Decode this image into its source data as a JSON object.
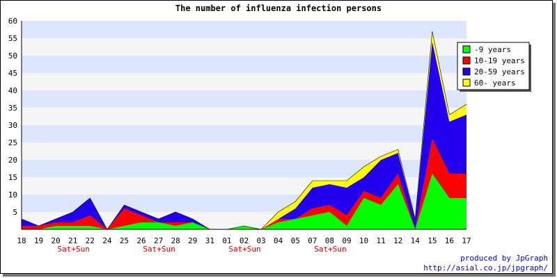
{
  "chart_data": {
    "type": "area",
    "stacked": true,
    "title": "The number of influenza infection persons",
    "categories": [
      "18",
      "19",
      "20",
      "21",
      "22",
      "24",
      "25",
      "26",
      "27",
      "28",
      "29",
      "31",
      "01",
      "02",
      "03",
      "04",
      "05",
      "07",
      "08",
      "09",
      "10",
      "11",
      "12",
      "14",
      "15",
      "16",
      "17"
    ],
    "weekend_labels": [
      {
        "category_index": 3,
        "text": "Sat+Sun"
      },
      {
        "category_index": 8,
        "text": "Sat+Sun"
      },
      {
        "category_index": 13,
        "text": "Sat+Sun"
      },
      {
        "category_index": 18,
        "text": "Sat+Sun"
      }
    ],
    "ylim": [
      0,
      60
    ],
    "yticks": [
      5,
      10,
      15,
      20,
      25,
      30,
      35,
      40,
      45,
      50,
      55,
      60
    ],
    "grid": "horizontal bands",
    "legend_position": "top-right",
    "series": [
      {
        "name": "-9 years",
        "color": "#00ff00",
        "values": [
          0,
          0,
          1,
          1,
          1,
          0,
          1,
          2,
          2,
          1,
          2,
          0,
          0,
          1,
          0,
          2,
          3,
          4,
          5,
          1,
          9,
          7,
          13,
          0,
          16,
          9,
          9
        ]
      },
      {
        "name": "10-19 years",
        "color": "#ff0000",
        "values": [
          1,
          1,
          1,
          1,
          3,
          0,
          5,
          2,
          0,
          1,
          0,
          0,
          0,
          0,
          0,
          1,
          0,
          2,
          2,
          3,
          2,
          2,
          3,
          0,
          10,
          7,
          7
        ]
      },
      {
        "name": "20-59 years",
        "color": "#2200ee",
        "values": [
          2,
          0,
          1,
          3,
          5,
          0,
          1,
          1,
          1,
          3,
          1,
          0,
          0,
          0,
          0,
          0,
          3,
          6,
          6,
          8,
          4,
          11,
          6,
          3,
          28,
          15,
          17
        ]
      },
      {
        "name": "60- years",
        "color": "#ffff00",
        "values": [
          0,
          0,
          0,
          0,
          0,
          0,
          0,
          0,
          0,
          0,
          0,
          0,
          0,
          0,
          0,
          2,
          2,
          2,
          1,
          2,
          3,
          1,
          1,
          0,
          3,
          2,
          3
        ]
      }
    ]
  },
  "credit": {
    "line1": "produced by JpGraph",
    "line2": "http://asial.co.jp/jpgraph/"
  }
}
